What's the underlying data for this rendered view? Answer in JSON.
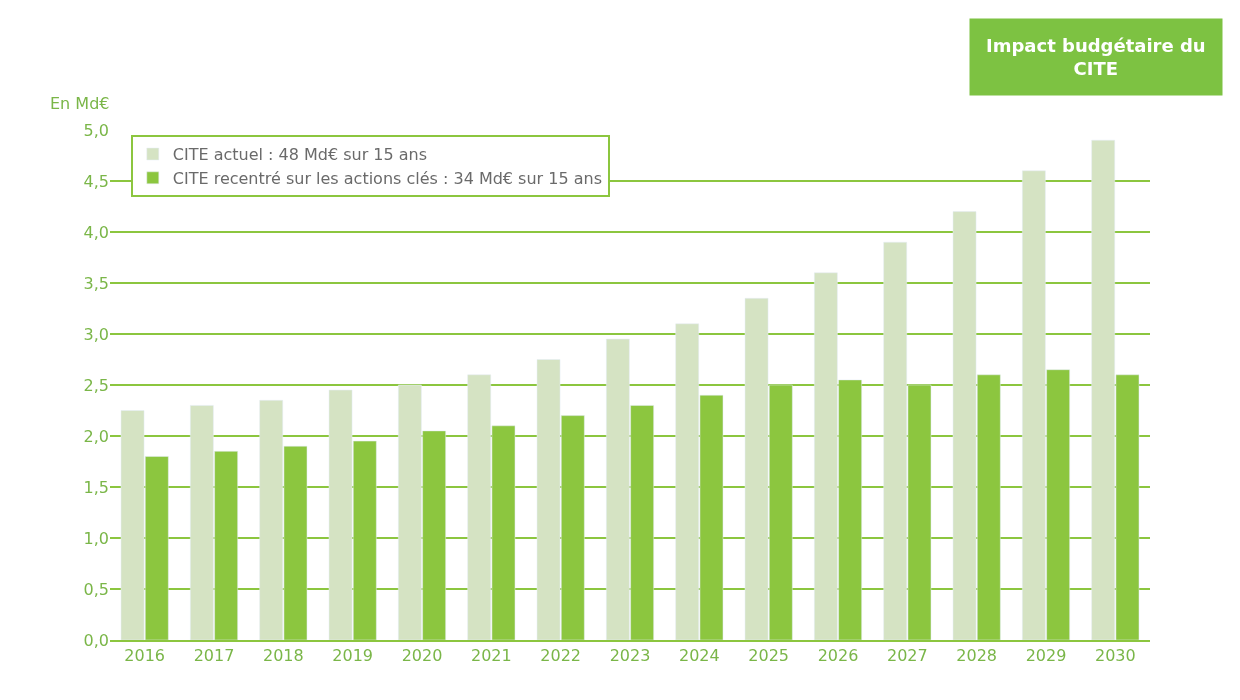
{
  "chart_data": {
    "type": "bar",
    "title": "Impact budgétaire du CITE",
    "ylabel": "En Md€",
    "categories": [
      "2016",
      "2017",
      "2018",
      "2019",
      "2020",
      "2021",
      "2022",
      "2023",
      "2024",
      "2025",
      "2026",
      "2027",
      "2028",
      "2029",
      "2030"
    ],
    "series": [
      {
        "name": "CITE actuel : 48 Md€ sur 15 ans",
        "color": "#d5e3c3",
        "values": [
          2.25,
          2.3,
          2.35,
          2.45,
          2.5,
          2.6,
          2.75,
          2.95,
          3.1,
          3.35,
          3.6,
          3.9,
          4.2,
          4.6,
          4.9
        ]
      },
      {
        "name": "CITE recentré sur les actions clés : 34 Md€ sur 15 ans",
        "color": "#8cc63f",
        "values": [
          1.8,
          1.85,
          1.9,
          1.95,
          2.05,
          2.1,
          2.2,
          2.3,
          2.4,
          2.5,
          2.55,
          2.5,
          2.6,
          2.65,
          2.6
        ]
      }
    ],
    "ylim": [
      0,
      5
    ],
    "yticks": [
      {
        "value": 0,
        "label": "0,0"
      },
      {
        "value": 0.5,
        "label": "0,5"
      },
      {
        "value": 1,
        "label": "1,0"
      },
      {
        "value": 1.5,
        "label": "1,5"
      },
      {
        "value": 2,
        "label": "2,0"
      },
      {
        "value": 2.5,
        "label": "2,5"
      },
      {
        "value": 3,
        "label": "3,0"
      },
      {
        "value": 3.5,
        "label": "3,5"
      },
      {
        "value": 4,
        "label": "4,0"
      },
      {
        "value": 4.5,
        "label": "4,5"
      },
      {
        "value": 5,
        "label": "5,0"
      }
    ],
    "grid": "y",
    "legend": "top left"
  }
}
